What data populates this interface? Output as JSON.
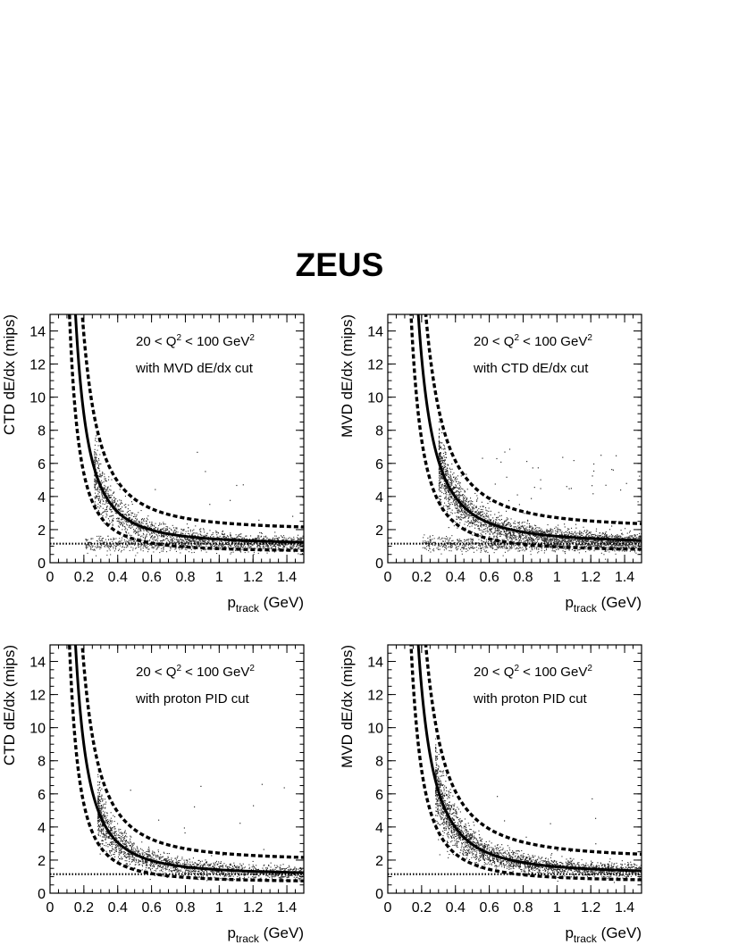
{
  "figure": {
    "title": "ZEUS"
  },
  "chart_data": [
    {
      "type": "scatter",
      "panel": "top-left",
      "xlabel_main": "p",
      "xlabel_sub": "track",
      "xlabel_unit": "(GeV)",
      "ylabel": "CTD dE/dx (mips)",
      "xlim": [
        0,
        1.5
      ],
      "ylim": [
        0,
        15
      ],
      "xticks": [
        "0",
        "0.2",
        "0.4",
        "0.6",
        "0.8",
        "1",
        "1.2",
        "1.4"
      ],
      "yticks": [
        "0",
        "2",
        "4",
        "6",
        "8",
        "10",
        "12",
        "14"
      ],
      "annotation_q2": {
        "a": "20 < Q",
        "sup1": "2",
        "b": " < 100 GeV",
        "sup2": "2"
      },
      "annotation_cut": "with MVD dE/dx cut",
      "band_curve": {
        "center_A": 1.05,
        "center_c": 1.1,
        "center_exp": 2,
        "upper_factor": 1.5,
        "lower_factor": 0.6,
        "upper_offset": 0.3
      },
      "pion_band_y": 1.15,
      "cloud": {
        "xmin": 0.26,
        "xmax": 1.5,
        "n": 1400,
        "pion_n": 900
      }
    },
    {
      "type": "scatter",
      "panel": "top-right",
      "xlabel_main": "p",
      "xlabel_sub": "track",
      "xlabel_unit": "(GeV)",
      "ylabel": "MVD dE/dx (mips)",
      "xlim": [
        0,
        1.5
      ],
      "ylim": [
        0,
        15
      ],
      "xticks": [
        "0",
        "0.2",
        "0.4",
        "0.6",
        "0.8",
        "1",
        "1.2",
        "1.4"
      ],
      "yticks": [
        "0",
        "2",
        "4",
        "6",
        "8",
        "10",
        "12",
        "14"
      ],
      "annotation_q2": {
        "a": "20 < Q",
        "sup1": "2",
        "b": " < 100 GeV",
        "sup2": "2"
      },
      "annotation_cut": "with CTD dE/dx cut",
      "band_curve": {
        "center_A": 1.5,
        "center_c": 1.15,
        "center_exp": 2,
        "upper_factor": 1.45,
        "lower_factor": 0.6,
        "upper_offset": 0.4
      },
      "pion_band_y": 1.15,
      "cloud": {
        "xmin": 0.3,
        "xmax": 1.5,
        "n": 2200,
        "pion_n": 1100
      }
    },
    {
      "type": "scatter",
      "panel": "bottom-left",
      "xlabel_main": "p",
      "xlabel_sub": "track",
      "xlabel_unit": "(GeV)",
      "ylabel": "CTD dE/dx (mips)",
      "xlim": [
        0,
        1.5
      ],
      "ylim": [
        0,
        15
      ],
      "xticks": [
        "0",
        "0.2",
        "0.4",
        "0.6",
        "0.8",
        "1",
        "1.2",
        "1.4"
      ],
      "yticks": [
        "0",
        "2",
        "4",
        "6",
        "8",
        "10",
        "12",
        "14"
      ],
      "annotation_q2": {
        "a": "20 < Q",
        "sup1": "2",
        "b": " < 100 GeV",
        "sup2": "2"
      },
      "annotation_cut": "with proton PID cut",
      "band_curve": {
        "center_A": 1.05,
        "center_c": 1.1,
        "center_exp": 2,
        "upper_factor": 1.5,
        "lower_factor": 0.6,
        "upper_offset": 0.3
      },
      "pion_band_y": 1.15,
      "cloud": {
        "xmin": 0.28,
        "xmax": 1.5,
        "n": 1800,
        "pion_n": 0
      }
    },
    {
      "type": "scatter",
      "panel": "bottom-right",
      "xlabel_main": "p",
      "xlabel_sub": "track",
      "xlabel_unit": "(GeV)",
      "ylabel": "MVD dE/dx (mips)",
      "xlim": [
        0,
        1.5
      ],
      "ylim": [
        0,
        15
      ],
      "xticks": [
        "0",
        "0.2",
        "0.4",
        "0.6",
        "0.8",
        "1",
        "1.2",
        "1.4"
      ],
      "yticks": [
        "0",
        "2",
        "4",
        "6",
        "8",
        "10",
        "12",
        "14"
      ],
      "annotation_q2": {
        "a": "20 < Q",
        "sup1": "2",
        "b": " < 100 GeV",
        "sup2": "2"
      },
      "annotation_cut": "with proton PID cut",
      "band_curve": {
        "center_A": 1.5,
        "center_c": 1.15,
        "center_exp": 2,
        "upper_factor": 1.45,
        "lower_factor": 0.6,
        "upper_offset": 0.4
      },
      "pion_band_y": 1.15,
      "cloud": {
        "xmin": 0.28,
        "xmax": 1.5,
        "n": 2400,
        "pion_n": 0
      }
    }
  ]
}
